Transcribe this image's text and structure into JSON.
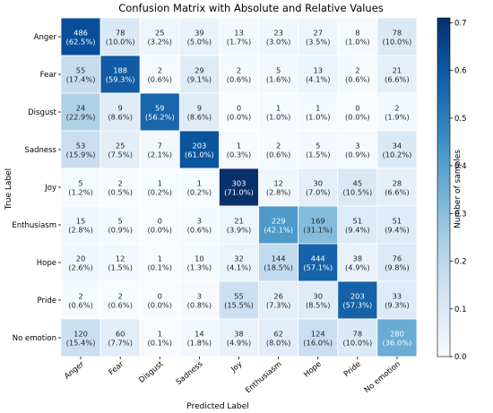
{
  "chart_data": {
    "type": "heatmap",
    "title": "Confusion Matrix with Absolute and Relative Values",
    "xlabel": "Predicted Label",
    "ylabel": "True Label",
    "labels": [
      "Anger",
      "Fear",
      "Disgust",
      "Sadness",
      "Joy",
      "Enthusiasm",
      "Hope",
      "Pride",
      "No emotion"
    ],
    "counts": [
      [
        486,
        78,
        25,
        39,
        13,
        23,
        27,
        8,
        78
      ],
      [
        55,
        188,
        2,
        29,
        2,
        5,
        13,
        2,
        21
      ],
      [
        24,
        9,
        59,
        9,
        0,
        1,
        1,
        0,
        2
      ],
      [
        53,
        25,
        7,
        203,
        1,
        2,
        5,
        3,
        34
      ],
      [
        5,
        2,
        1,
        1,
        303,
        12,
        30,
        45,
        28
      ],
      [
        15,
        5,
        0,
        3,
        21,
        229,
        169,
        51,
        51
      ],
      [
        20,
        12,
        1,
        10,
        32,
        144,
        444,
        38,
        76
      ],
      [
        2,
        2,
        0,
        3,
        55,
        26,
        30,
        203,
        33
      ],
      [
        120,
        60,
        1,
        14,
        38,
        62,
        124,
        78,
        280
      ]
    ],
    "percent_labels": [
      [
        "(62.5%)",
        "(10.0%)",
        "(3.2%)",
        "(5.0%)",
        "(1.7%)",
        "(3.0%)",
        "(3.5%)",
        "(1.0%)",
        "(10.0%)"
      ],
      [
        "(17.4%)",
        "(59.3%)",
        "(0.6%)",
        "(9.1%)",
        "(0.6%)",
        "(1.6%)",
        "(4.1%)",
        "(0.6%)",
        "(6.6%)"
      ],
      [
        "(22.9%)",
        "(8.6%)",
        "(56.2%)",
        "(8.6%)",
        "(0.0%)",
        "(1.0%)",
        "(1.0%)",
        "(0.0%)",
        "(1.9%)"
      ],
      [
        "(15.9%)",
        "(7.5%)",
        "(2.1%)",
        "(61.0%)",
        "(0.3%)",
        "(0.6%)",
        "(1.5%)",
        "(0.9%)",
        "(10.2%)"
      ],
      [
        "(1.2%)",
        "(0.5%)",
        "(0.2%)",
        "(0.2%)",
        "(71.0%)",
        "(2.8%)",
        "(7.0%)",
        "(10.5%)",
        "(6.6%)"
      ],
      [
        "(2.8%)",
        "(0.9%)",
        "(0.0%)",
        "(0.6%)",
        "(3.9%)",
        "(42.1%)",
        "(31.1%)",
        "(9.4%)",
        "(9.4%)"
      ],
      [
        "(2.6%)",
        "(1.5%)",
        "(0.1%)",
        "(1.3%)",
        "(4.1%)",
        "(18.5%)",
        "(57.1%)",
        "(4.9%)",
        "(9.8%)"
      ],
      [
        "(0.6%)",
        "(0.6%)",
        "(0.0%)",
        "(0.8%)",
        "(15.5%)",
        "(7.3%)",
        "(8.5%)",
        "(57.3%)",
        "(9.3%)"
      ],
      [
        "(15.4%)",
        "(7.7%)",
        "(0.1%)",
        "(1.8%)",
        "(4.9%)",
        "(8.0%)",
        "(16.0%)",
        "(10.0%)",
        "(36.0%)"
      ]
    ],
    "colorbar": {
      "label": "Number of samples",
      "range": [
        0,
        0.71
      ],
      "ticks": [
        0.0,
        0.1,
        0.2,
        0.3,
        0.4,
        0.5,
        0.6,
        0.7
      ],
      "tick_labels": [
        "0.0",
        "0.1",
        "0.2",
        "0.3",
        "0.4",
        "0.5",
        "0.6",
        "0.7"
      ],
      "colormap": "Blues"
    },
    "cell_borders": "white"
  }
}
